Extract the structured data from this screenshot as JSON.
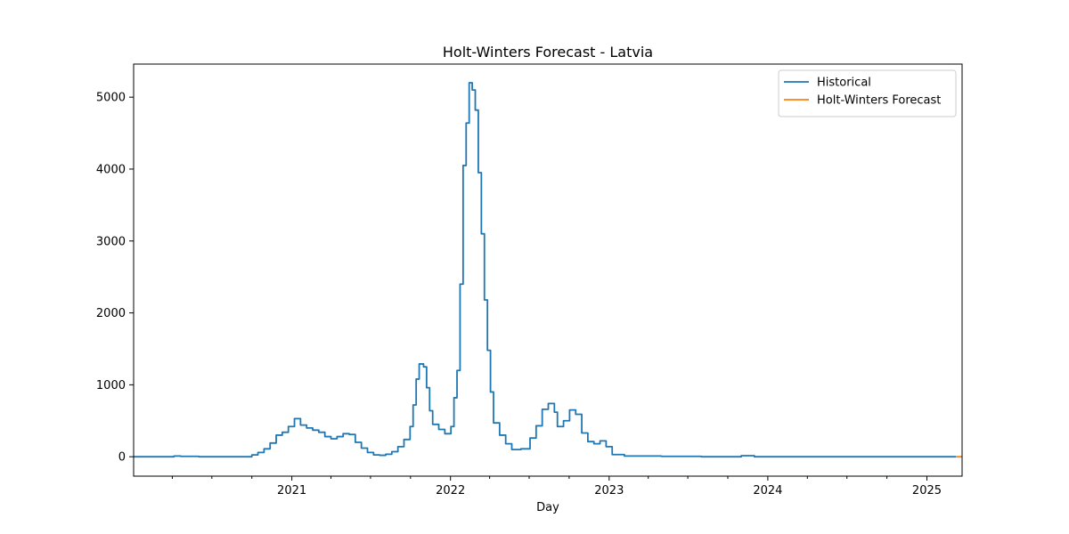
{
  "chart_data": {
    "type": "line",
    "title": "Holt-Winters Forecast - Latvia",
    "xlabel": "Day",
    "ylabel": "",
    "x_range": [
      "2020-01-03",
      "2025-03-23"
    ],
    "ylim": [
      -270,
      5460
    ],
    "y_ticks": [
      0,
      1000,
      2000,
      3000,
      4000,
      5000
    ],
    "x_ticks": [
      {
        "label": "2021",
        "date": "2021-01-01"
      },
      {
        "label": "2022",
        "date": "2022-01-01"
      },
      {
        "label": "2023",
        "date": "2023-01-01"
      },
      {
        "label": "2024",
        "date": "2024-01-01"
      },
      {
        "label": "2025",
        "date": "2025-01-01"
      }
    ],
    "minor_ticks": [
      "2020-04-01",
      "2020-07-01",
      "2020-10-01",
      "2021-04-01",
      "2021-07-01",
      "2021-10-01",
      "2022-04-01",
      "2022-07-01",
      "2022-10-01",
      "2023-04-01",
      "2023-07-01",
      "2023-10-01",
      "2024-04-01",
      "2024-07-01",
      "2024-10-01"
    ],
    "grid": false,
    "legend_position": "top-right",
    "step": true,
    "series": [
      {
        "name": "Historical",
        "color": "#1f77b4",
        "points": [
          [
            "2020-01-03",
            0
          ],
          [
            "2020-03-20",
            0
          ],
          [
            "2020-04-05",
            10
          ],
          [
            "2020-04-20",
            5
          ],
          [
            "2020-06-01",
            0
          ],
          [
            "2020-09-01",
            0
          ],
          [
            "2020-10-01",
            25
          ],
          [
            "2020-10-15",
            60
          ],
          [
            "2020-10-29",
            110
          ],
          [
            "2020-11-12",
            190
          ],
          [
            "2020-11-26",
            300
          ],
          [
            "2020-12-10",
            340
          ],
          [
            "2020-12-24",
            420
          ],
          [
            "2021-01-07",
            530
          ],
          [
            "2021-01-21",
            440
          ],
          [
            "2021-02-04",
            400
          ],
          [
            "2021-02-18",
            370
          ],
          [
            "2021-03-04",
            340
          ],
          [
            "2021-03-18",
            280
          ],
          [
            "2021-04-01",
            250
          ],
          [
            "2021-04-15",
            280
          ],
          [
            "2021-04-29",
            320
          ],
          [
            "2021-05-13",
            310
          ],
          [
            "2021-05-27",
            200
          ],
          [
            "2021-06-10",
            120
          ],
          [
            "2021-06-24",
            60
          ],
          [
            "2021-07-08",
            25
          ],
          [
            "2021-07-22",
            20
          ],
          [
            "2021-08-05",
            35
          ],
          [
            "2021-08-19",
            70
          ],
          [
            "2021-09-02",
            140
          ],
          [
            "2021-09-16",
            240
          ],
          [
            "2021-09-30",
            420
          ],
          [
            "2021-10-07",
            720
          ],
          [
            "2021-10-14",
            1080
          ],
          [
            "2021-10-21",
            1290
          ],
          [
            "2021-10-31",
            1250
          ],
          [
            "2021-11-07",
            960
          ],
          [
            "2021-11-14",
            640
          ],
          [
            "2021-11-21",
            450
          ],
          [
            "2021-12-05",
            380
          ],
          [
            "2021-12-19",
            320
          ],
          [
            "2022-01-02",
            420
          ],
          [
            "2022-01-09",
            820
          ],
          [
            "2022-01-16",
            1200
          ],
          [
            "2022-01-23",
            2400
          ],
          [
            "2022-01-30",
            4050
          ],
          [
            "2022-02-06",
            4640
          ],
          [
            "2022-02-13",
            5200
          ],
          [
            "2022-02-20",
            5100
          ],
          [
            "2022-02-27",
            4820
          ],
          [
            "2022-03-06",
            3950
          ],
          [
            "2022-03-13",
            3100
          ],
          [
            "2022-03-20",
            2180
          ],
          [
            "2022-03-27",
            1480
          ],
          [
            "2022-04-03",
            900
          ],
          [
            "2022-04-10",
            470
          ],
          [
            "2022-04-24",
            300
          ],
          [
            "2022-05-08",
            180
          ],
          [
            "2022-05-22",
            100
          ],
          [
            "2022-06-12",
            110
          ],
          [
            "2022-07-03",
            260
          ],
          [
            "2022-07-17",
            430
          ],
          [
            "2022-07-31",
            660
          ],
          [
            "2022-08-14",
            740
          ],
          [
            "2022-08-28",
            620
          ],
          [
            "2022-09-04",
            420
          ],
          [
            "2022-09-18",
            500
          ],
          [
            "2022-10-02",
            650
          ],
          [
            "2022-10-16",
            590
          ],
          [
            "2022-10-30",
            330
          ],
          [
            "2022-11-13",
            210
          ],
          [
            "2022-11-27",
            180
          ],
          [
            "2022-12-11",
            220
          ],
          [
            "2022-12-25",
            140
          ],
          [
            "2023-01-08",
            30
          ],
          [
            "2023-02-05",
            10
          ],
          [
            "2023-05-01",
            5
          ],
          [
            "2023-08-01",
            0
          ],
          [
            "2023-11-01",
            15
          ],
          [
            "2023-12-01",
            0
          ],
          [
            "2025-03-09",
            0
          ]
        ]
      },
      {
        "name": "Holt-Winters Forecast",
        "color": "#ff7f0e",
        "points": [
          [
            "2025-03-09",
            0
          ],
          [
            "2025-03-23",
            0
          ]
        ]
      }
    ]
  }
}
